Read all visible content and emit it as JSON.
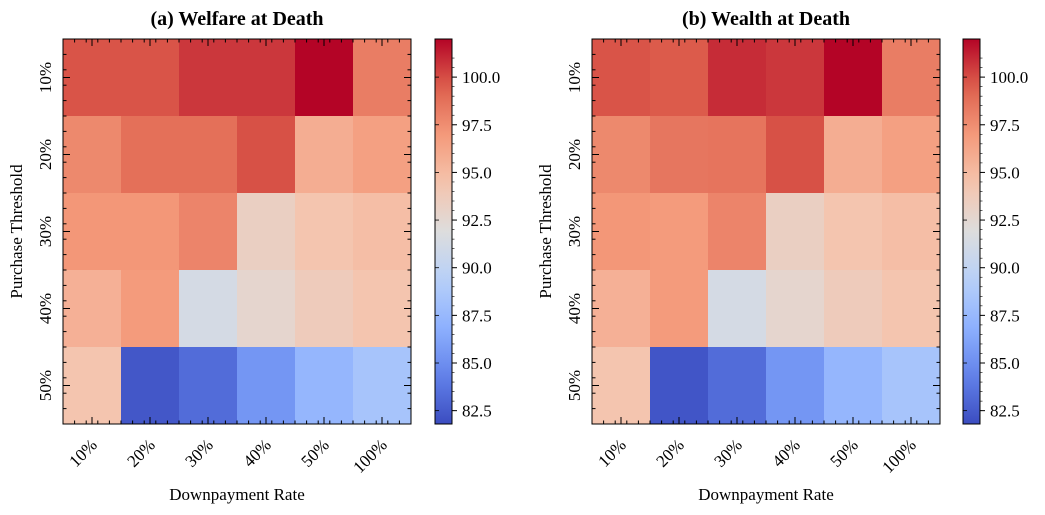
{
  "chart_data": [
    {
      "type": "heatmap",
      "title": "(a) Welfare at Death",
      "xlabel": "Downpayment Rate",
      "ylabel": "Purchase Threshold",
      "x_categories": [
        "10%",
        "20%",
        "30%",
        "40%",
        "50%",
        "100%"
      ],
      "y_categories": [
        "10%",
        "20%",
        "30%",
        "40%",
        "50%"
      ],
      "values": [
        [
          99.8,
          99.8,
          100.6,
          100.6,
          102.0,
          98.2
        ],
        [
          97.7,
          98.8,
          98.8,
          99.9,
          95.8,
          96.6
        ],
        [
          97.1,
          97.1,
          97.9,
          93.3,
          94.3,
          94.8
        ],
        [
          95.6,
          96.9,
          91.3,
          92.7,
          93.7,
          94.3
        ],
        [
          94.3,
          82.3,
          83.3,
          85.4,
          87.3,
          88.4
        ]
      ],
      "colorbar": {
        "ticks": [
          "82.5",
          "85.0",
          "87.5",
          "90.0",
          "92.5",
          "95.0",
          "97.5",
          "100.0"
        ],
        "range": [
          81.8,
          102.0
        ],
        "colormap": "coolwarm"
      }
    },
    {
      "type": "heatmap",
      "title": "(b) Wealth at Death",
      "xlabel": "Downpayment Rate",
      "ylabel": "Purchase Threshold",
      "x_categories": [
        "10%",
        "20%",
        "30%",
        "40%",
        "50%",
        "100%"
      ],
      "y_categories": [
        "10%",
        "20%",
        "30%",
        "40%",
        "50%"
      ],
      "values": [
        [
          99.8,
          99.6,
          100.9,
          100.6,
          102.0,
          98.2
        ],
        [
          97.7,
          98.5,
          98.6,
          99.9,
          95.8,
          96.6
        ],
        [
          97.1,
          96.9,
          97.9,
          93.3,
          94.3,
          94.8
        ],
        [
          95.6,
          96.9,
          91.3,
          92.7,
          93.7,
          94.3
        ],
        [
          94.3,
          82.2,
          83.3,
          85.4,
          87.3,
          88.4
        ]
      ],
      "colorbar": {
        "ticks": [
          "82.5",
          "85.0",
          "87.5",
          "90.0",
          "92.5",
          "95.0",
          "97.5",
          "100.0"
        ],
        "range": [
          81.8,
          102.0
        ],
        "colormap": "coolwarm"
      }
    }
  ]
}
